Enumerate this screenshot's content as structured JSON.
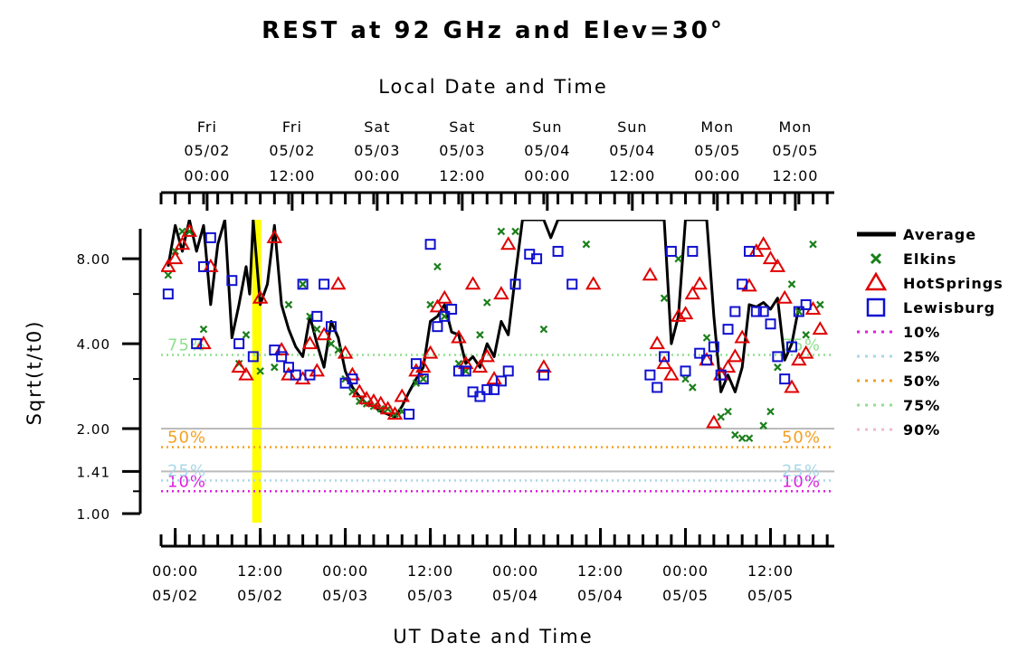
{
  "chart_data": {
    "type": "line",
    "title": "REST at 92 GHz and Elev=30°",
    "top_axis_title": "Local Date and Time",
    "bottom_axis_title": "UT Date and Time",
    "ylabel": "Sqrt(t/t0)",
    "y_scale": "log",
    "ylim": [
      1.0,
      11.0
    ],
    "y_ticks": [
      {
        "value": 1.0,
        "label": "1.00"
      },
      {
        "value": 1.41,
        "label": "1.41"
      },
      {
        "value": 2.0,
        "label": "2.00"
      },
      {
        "value": 4.0,
        "label": "4.00"
      },
      {
        "value": 8.0,
        "label": "8.00"
      }
    ],
    "x_unit": "hours since 05/02 00:00 UT",
    "xlim": [
      -2,
      93
    ],
    "bottom_ticks": [
      {
        "x": 0,
        "time": "00:00",
        "date": "05/02"
      },
      {
        "x": 12,
        "time": "12:00",
        "date": "05/02"
      },
      {
        "x": 24,
        "time": "00:00",
        "date": "05/03"
      },
      {
        "x": 36,
        "time": "12:00",
        "date": "05/03"
      },
      {
        "x": 48,
        "time": "00:00",
        "date": "05/04"
      },
      {
        "x": 60,
        "time": "12:00",
        "date": "05/04"
      },
      {
        "x": 72,
        "time": "00:00",
        "date": "05/05"
      },
      {
        "x": 84,
        "time": "12:00",
        "date": "05/05"
      }
    ],
    "top_ticks": [
      {
        "x": 4.5,
        "day": "Fri",
        "date": "05/02",
        "time": "00:00"
      },
      {
        "x": 16.5,
        "day": "Fri",
        "date": "05/02",
        "time": "12:00"
      },
      {
        "x": 28.5,
        "day": "Sat",
        "date": "05/03",
        "time": "00:00"
      },
      {
        "x": 40.5,
        "day": "Sat",
        "date": "05/03",
        "time": "12:00"
      },
      {
        "x": 52.5,
        "day": "Sun",
        "date": "05/04",
        "time": "00:00"
      },
      {
        "x": 64.5,
        "day": "Sun",
        "date": "05/04",
        "time": "12:00"
      },
      {
        "x": 76.5,
        "day": "Mon",
        "date": "05/05",
        "time": "00:00"
      },
      {
        "x": 87.5,
        "day": "Mon",
        "date": "05/05",
        "time": "12:00"
      }
    ],
    "highlight_x": 11.5,
    "highlight_color": "#ffff00",
    "reference_lines": [
      {
        "value": 2.0,
        "color": "#bbbbbb",
        "style": "solid"
      },
      {
        "value": 1.41,
        "color": "#bbbbbb",
        "style": "solid"
      }
    ],
    "percentiles": [
      {
        "name": "10%",
        "value": 1.2,
        "color": "#e01ee0",
        "label": "10%"
      },
      {
        "name": "25%",
        "value": 1.31,
        "color": "#a8d8e8",
        "label": "25%"
      },
      {
        "name": "50%",
        "value": 1.72,
        "color": "#f5a020",
        "label": "50%"
      },
      {
        "name": "75%",
        "value": 3.65,
        "color": "#90e090",
        "label": "75%"
      },
      {
        "name": "90%",
        "value": null,
        "color": "#f5b8c8",
        "label": null
      }
    ],
    "series": [
      {
        "name": "Average",
        "color": "#000000",
        "type": "line",
        "points": [
          [
            -1,
            7.5
          ],
          [
            0,
            10.5
          ],
          [
            1,
            8.5
          ],
          [
            2,
            11
          ],
          [
            3,
            8.5
          ],
          [
            4,
            10.5
          ],
          [
            5,
            5.5
          ],
          [
            6,
            9
          ],
          [
            7,
            11
          ],
          [
            8,
            4.2
          ],
          [
            9,
            5.5
          ],
          [
            10,
            7.5
          ],
          [
            10.5,
            6
          ],
          [
            11,
            11
          ],
          [
            12,
            5.5
          ],
          [
            13,
            6.5
          ],
          [
            14,
            10.5
          ],
          [
            15,
            5.5
          ],
          [
            16,
            4.5
          ],
          [
            17,
            3.9
          ],
          [
            18,
            3.6
          ],
          [
            19,
            5
          ],
          [
            20,
            4
          ],
          [
            21,
            3.3
          ],
          [
            22,
            4.8
          ],
          [
            23,
            4.2
          ],
          [
            24,
            3.2
          ],
          [
            25,
            2.8
          ],
          [
            26,
            2.6
          ],
          [
            27,
            2.45
          ],
          [
            28,
            2.4
          ],
          [
            29,
            2.3
          ],
          [
            30,
            2.25
          ],
          [
            31,
            2.2
          ],
          [
            32,
            2.4
          ],
          [
            33,
            2.7
          ],
          [
            34,
            3
          ],
          [
            35,
            3.3
          ],
          [
            36,
            4.8
          ],
          [
            37,
            5
          ],
          [
            38,
            5.5
          ],
          [
            39,
            4.4
          ],
          [
            40,
            4.3
          ],
          [
            41,
            3.4
          ],
          [
            42,
            3.6
          ],
          [
            43,
            3.3
          ],
          [
            44,
            4
          ],
          [
            45,
            3.6
          ],
          [
            46,
            4.8
          ],
          [
            47,
            4.3
          ],
          [
            48,
            7
          ],
          [
            49,
            11
          ],
          [
            52,
            11
          ],
          [
            53,
            9.5
          ],
          [
            54,
            11
          ],
          [
            69,
            11
          ],
          [
            70,
            4
          ],
          [
            71,
            5
          ],
          [
            72,
            11
          ],
          [
            75,
            11
          ],
          [
            76,
            5
          ],
          [
            77,
            2.7
          ],
          [
            78,
            3.1
          ],
          [
            79,
            2.7
          ],
          [
            80,
            3.3
          ],
          [
            81,
            5.5
          ],
          [
            82,
            5.4
          ],
          [
            83,
            5.6
          ],
          [
            84,
            5.3
          ],
          [
            85,
            5.8
          ],
          [
            86,
            3.5
          ],
          [
            87,
            4
          ],
          [
            88,
            5.4
          ]
        ]
      },
      {
        "name": "Elkins",
        "color": "#1a7f1a",
        "type": "scatter",
        "marker": "x",
        "points": [
          [
            -1,
            7
          ],
          [
            0,
            8.5
          ],
          [
            1,
            10
          ],
          [
            2,
            10
          ],
          [
            4,
            4.5
          ],
          [
            9,
            3.4
          ],
          [
            10,
            4.3
          ],
          [
            12,
            3.2
          ],
          [
            14,
            3.3
          ],
          [
            16,
            5.5
          ],
          [
            18,
            6.5
          ],
          [
            19,
            5
          ],
          [
            20,
            4.5
          ],
          [
            22,
            4
          ],
          [
            23,
            3.8
          ],
          [
            24,
            3
          ],
          [
            25,
            2.7
          ],
          [
            26,
            2.5
          ],
          [
            27,
            2.45
          ],
          [
            28,
            2.4
          ],
          [
            29,
            2.35
          ],
          [
            30,
            2.35
          ],
          [
            31,
            2.25
          ],
          [
            32,
            2.3
          ],
          [
            34,
            2.9
          ],
          [
            35,
            3
          ],
          [
            36,
            5.5
          ],
          [
            37,
            7.5
          ],
          [
            38,
            5
          ],
          [
            40,
            3.4
          ],
          [
            41,
            3.2
          ],
          [
            43,
            4.3
          ],
          [
            44,
            5.6
          ],
          [
            46,
            10
          ],
          [
            48,
            10
          ],
          [
            52,
            4.5
          ],
          [
            58,
            9
          ],
          [
            69,
            5.8
          ],
          [
            71,
            8
          ],
          [
            72,
            3
          ],
          [
            73,
            2.8
          ],
          [
            75,
            4.2
          ],
          [
            77,
            2.2
          ],
          [
            78,
            2.3
          ],
          [
            79,
            1.9
          ],
          [
            80,
            1.85
          ],
          [
            81,
            1.85
          ],
          [
            83,
            2.05
          ],
          [
            84,
            2.3
          ],
          [
            85,
            3.3
          ],
          [
            87,
            6.5
          ],
          [
            88,
            5.2
          ],
          [
            89,
            4.3
          ],
          [
            90,
            9
          ],
          [
            91,
            5.5
          ]
        ]
      },
      {
        "name": "HotSprings",
        "color": "#e00000",
        "type": "scatter",
        "marker": "triangle",
        "points": [
          [
            -1,
            7.5
          ],
          [
            0,
            8
          ],
          [
            1,
            9
          ],
          [
            2,
            10
          ],
          [
            4,
            4
          ],
          [
            5,
            7.5
          ],
          [
            9,
            3.3
          ],
          [
            10,
            3.1
          ],
          [
            12,
            5.8
          ],
          [
            14,
            9.5
          ],
          [
            15,
            3.8
          ],
          [
            16,
            3.1
          ],
          [
            18,
            3
          ],
          [
            19,
            4
          ],
          [
            20,
            3.2
          ],
          [
            21,
            4.3
          ],
          [
            23,
            6.5
          ],
          [
            24,
            3.7
          ],
          [
            25,
            3.1
          ],
          [
            26,
            2.7
          ],
          [
            27,
            2.55
          ],
          [
            28,
            2.5
          ],
          [
            29,
            2.45
          ],
          [
            30,
            2.35
          ],
          [
            31,
            2.25
          ],
          [
            32,
            2.6
          ],
          [
            34,
            3.2
          ],
          [
            35,
            3.3
          ],
          [
            36,
            3.7
          ],
          [
            37,
            5.4
          ],
          [
            38,
            5.8
          ],
          [
            40,
            4.2
          ],
          [
            41,
            3.4
          ],
          [
            42,
            6.5
          ],
          [
            43,
            3.3
          ],
          [
            44,
            3.6
          ],
          [
            45,
            3
          ],
          [
            46,
            6
          ],
          [
            47,
            9
          ],
          [
            52,
            3.3
          ],
          [
            59,
            6.5
          ],
          [
            67,
            7
          ],
          [
            68,
            4
          ],
          [
            69,
            3.4
          ],
          [
            70,
            3.1
          ],
          [
            71,
            5
          ],
          [
            72,
            5.1
          ],
          [
            73,
            6
          ],
          [
            74,
            6.5
          ],
          [
            75,
            3.5
          ],
          [
            76,
            2.1
          ],
          [
            77,
            3.1
          ],
          [
            78,
            3.3
          ],
          [
            79,
            3.6
          ],
          [
            80,
            4.2
          ],
          [
            81,
            6.4
          ],
          [
            82,
            8.5
          ],
          [
            83,
            9
          ],
          [
            84,
            8
          ],
          [
            85,
            7.5
          ],
          [
            86,
            5.8
          ],
          [
            87,
            2.8
          ],
          [
            88,
            3.5
          ],
          [
            89,
            3.7
          ],
          [
            90,
            5.3
          ],
          [
            91,
            4.5
          ]
        ]
      },
      {
        "name": "Lewisburg",
        "color": "#1010d0",
        "type": "scatter",
        "marker": "square",
        "points": [
          [
            -1,
            6
          ],
          [
            3,
            4
          ],
          [
            4,
            7.5
          ],
          [
            5,
            9.5
          ],
          [
            8,
            6.7
          ],
          [
            9,
            4
          ],
          [
            11,
            3.6
          ],
          [
            14,
            3.8
          ],
          [
            15,
            3.6
          ],
          [
            16,
            3.3
          ],
          [
            17,
            3.1
          ],
          [
            18,
            6.5
          ],
          [
            19,
            3.1
          ],
          [
            20,
            5
          ],
          [
            21,
            6.5
          ],
          [
            22,
            4.6
          ],
          [
            24,
            2.9
          ],
          [
            25,
            3
          ],
          [
            33,
            2.25
          ],
          [
            34,
            3.4
          ],
          [
            35,
            3
          ],
          [
            36,
            9
          ],
          [
            37,
            4.6
          ],
          [
            38,
            5
          ],
          [
            39,
            5.3
          ],
          [
            40,
            3.2
          ],
          [
            41,
            3.2
          ],
          [
            42,
            2.7
          ],
          [
            43,
            2.6
          ],
          [
            44,
            2.75
          ],
          [
            45,
            2.75
          ],
          [
            46,
            2.95
          ],
          [
            47,
            3.2
          ],
          [
            48,
            6.5
          ],
          [
            50,
            8.3
          ],
          [
            51,
            8
          ],
          [
            52,
            3.1
          ],
          [
            54,
            8.5
          ],
          [
            56,
            6.5
          ],
          [
            67,
            3.1
          ],
          [
            68,
            2.8
          ],
          [
            69,
            3.6
          ],
          [
            70,
            8.5
          ],
          [
            72,
            3.2
          ],
          [
            73,
            8.5
          ],
          [
            74,
            3.7
          ],
          [
            75,
            3.5
          ],
          [
            76,
            3.9
          ],
          [
            77,
            3.1
          ],
          [
            78,
            4.5
          ],
          [
            79,
            5.2
          ],
          [
            80,
            6.5
          ],
          [
            81,
            8.5
          ],
          [
            82,
            5.2
          ],
          [
            83,
            5.2
          ],
          [
            84,
            4.7
          ],
          [
            85,
            3.6
          ],
          [
            86,
            3
          ],
          [
            87,
            3.9
          ],
          [
            88,
            5.2
          ],
          [
            89,
            5.5
          ]
        ]
      }
    ],
    "legend": {
      "placement": "right",
      "entries": [
        {
          "label": "Average",
          "symbol": "line",
          "color": "#000000"
        },
        {
          "label": "Elkins",
          "symbol": "x",
          "color": "#1a7f1a"
        },
        {
          "label": "HotSprings",
          "symbol": "triangle",
          "color": "#e00000"
        },
        {
          "label": "Lewisburg",
          "symbol": "square",
          "color": "#1010d0"
        },
        {
          "label": "10%",
          "symbol": "dotted",
          "color": "#e01ee0"
        },
        {
          "label": "25%",
          "symbol": "dotted",
          "color": "#a8d8e8"
        },
        {
          "label": "50%",
          "symbol": "dotted",
          "color": "#f5a020"
        },
        {
          "label": "75%",
          "symbol": "dotted",
          "color": "#90e090"
        },
        {
          "label": "90%",
          "symbol": "dotted",
          "color": "#f5b8c8"
        }
      ]
    }
  }
}
